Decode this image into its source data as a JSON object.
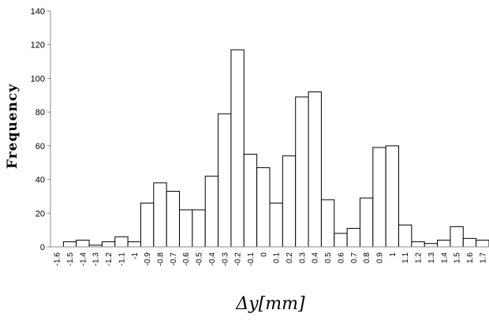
{
  "chart_data": {
    "type": "bar",
    "ylabel": "Frequency",
    "xlabel": "Δy[mm]",
    "ylim": [
      0,
      140
    ],
    "yticks": [
      0,
      20,
      40,
      60,
      80,
      100,
      120,
      140
    ],
    "categories": [
      "-1.6",
      "-1.5",
      "-1.4",
      "-1.3",
      "-1.2",
      "-1.1",
      "-1",
      "-0.9",
      "-0.8",
      "-0.7",
      "-0.6",
      "-0.5",
      "-0.4",
      "-0.3",
      "-0.2",
      "-0.1",
      "0",
      "0.1",
      "0.2",
      "0.3",
      "0.4",
      "0.5",
      "0.6",
      "0.7",
      "0.8",
      "0.9",
      "1",
      "1.1",
      "1.2",
      "1.3",
      "1.4",
      "1.5",
      "1.6",
      "1.7"
    ],
    "values": [
      0,
      3,
      4,
      1,
      3,
      6,
      3,
      26,
      38,
      33,
      22,
      22,
      42,
      79,
      117,
      55,
      47,
      26,
      54,
      89,
      92,
      28,
      8,
      11,
      29,
      59,
      60,
      13,
      3,
      2,
      4,
      12,
      5,
      4
    ],
    "grid": false,
    "colors": {
      "bar_fill": "#ffffff",
      "bar_stroke": "#000000",
      "axis": "#888888"
    }
  }
}
